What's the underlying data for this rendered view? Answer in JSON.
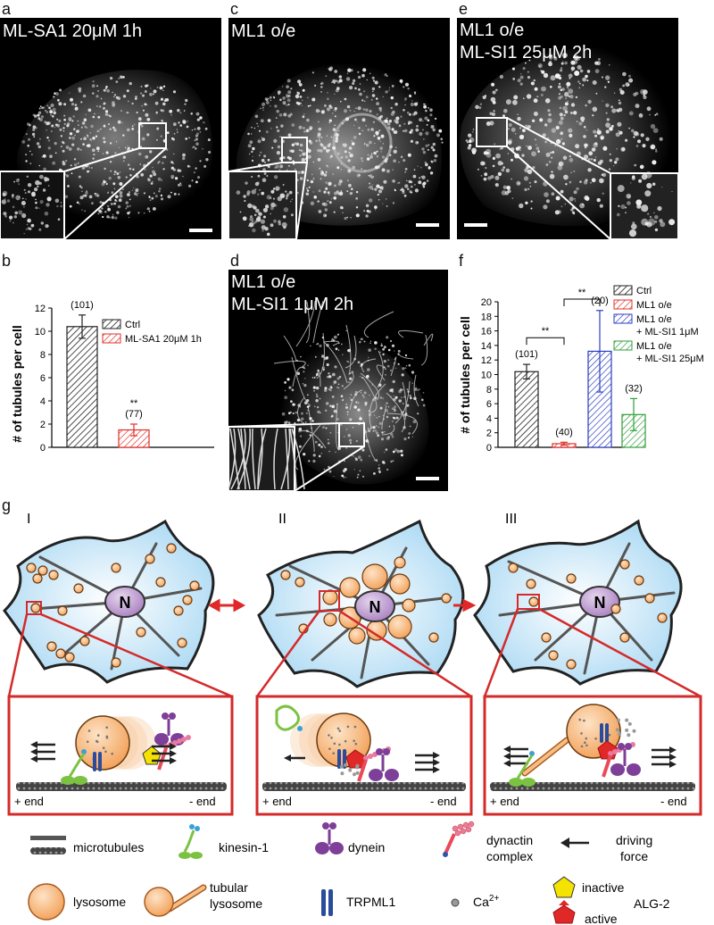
{
  "panels": {
    "a": {
      "label": "a",
      "title": "ML-SA1 20μM 1h"
    },
    "c": {
      "label": "c",
      "title": "ML1 o/e"
    },
    "e": {
      "label": "e",
      "title_line1": "ML1 o/e",
      "title_line2": "ML-SI1 25μM 2h"
    },
    "b": {
      "label": "b"
    },
    "d": {
      "label": "d",
      "title_line1": "ML1 o/e",
      "title_line2": "ML-SI1 1μM 2h"
    },
    "f": {
      "label": "f"
    },
    "g": {
      "label": "g"
    }
  },
  "chart_data": [
    {
      "id": "b",
      "type": "bar",
      "ylabel": "# of tubules per cell",
      "ylim": [
        0,
        12
      ],
      "yticks": [
        "0",
        "2",
        "4",
        "6",
        "8",
        "10",
        "12"
      ],
      "categories": [
        "Ctrl",
        "ML-SA1 20μM 1h"
      ],
      "values": [
        10.4,
        1.5
      ],
      "errors": [
        1.0,
        0.5
      ],
      "n_labels": [
        "(101)",
        "(77)"
      ],
      "sig": [
        "",
        "**"
      ],
      "legend": [
        "Ctrl",
        "ML-SA1 20μM 1h"
      ],
      "colors": [
        "#222222",
        "#e0302a"
      ],
      "legend_position": "top-right"
    },
    {
      "id": "f",
      "type": "bar",
      "ylabel": "# of tubules per cell",
      "ylim": [
        0,
        20
      ],
      "yticks": [
        "0",
        "2",
        "4",
        "6",
        "8",
        "10",
        "12",
        "14",
        "16",
        "18",
        "20"
      ],
      "categories": [
        "Ctrl",
        "ML1 o/e",
        "ML1 o/e + ML-SI1 1μM",
        "ML1 o/e + ML-SI1 25μM"
      ],
      "values": [
        10.4,
        0.5,
        13.2,
        4.5
      ],
      "errors": [
        1.0,
        0.2,
        5.6,
        2.2
      ],
      "n_labels": [
        "(101)",
        "(40)",
        "(20)",
        "(32)"
      ],
      "sig_brackets": [
        "**",
        "**"
      ],
      "legend": [
        [
          "Ctrl"
        ],
        [
          "ML1 o/e"
        ],
        [
          "ML1 o/e",
          "+ ML-SI1 1μM"
        ],
        [
          "ML1 o/e",
          "+ ML-SI1 25μM"
        ]
      ],
      "colors": [
        "#222222",
        "#e0302a",
        "#2a3fc0",
        "#2e9e3a"
      ],
      "legend_position": "top-right"
    }
  ],
  "diagram": {
    "stages": [
      "I",
      "II",
      "III"
    ],
    "nucleus": "N",
    "plus_end": "+ end",
    "minus_end": "- end"
  },
  "legend_items": {
    "microtubules": "microtubules",
    "kinesin": "kinesin-1",
    "dynein": "dynein",
    "dynactin_line1": "dynactin",
    "dynactin_line2": "complex",
    "force_line1": "driving",
    "force_line2": "force",
    "lysosome": "lysosome",
    "tubular_line1": "tubular",
    "tubular_line2": "lysosome",
    "trpml1": "TRPML1",
    "ca": "Ca",
    "ca_sup": "2+",
    "inactive": "inactive",
    "active": "active",
    "alg2": "ALG-2"
  },
  "colors": {
    "cell_fill": "#cfe9f8",
    "lysosome": "#f7bd83",
    "nucleus": "#c8a9d6",
    "box": "#d42a2a",
    "kinesin": "#7cc242",
    "dynein": "#7e3f98",
    "dynactin": "#e94a5a"
  }
}
